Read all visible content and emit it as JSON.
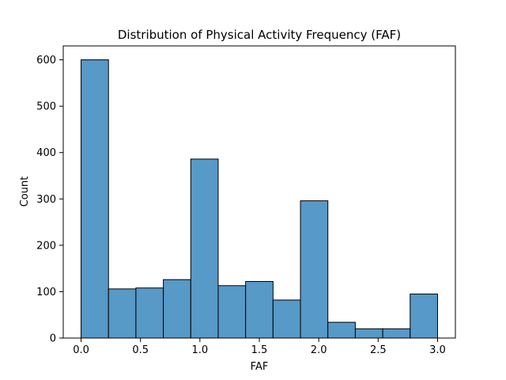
{
  "chart_data": {
    "type": "bar",
    "title": "Distribution of Physical Activity Frequency (FAF)",
    "xlabel": "FAF",
    "ylabel": "Count",
    "bin_edges": [
      0.0,
      0.2308,
      0.4615,
      0.6923,
      0.9231,
      1.1538,
      1.3846,
      1.6154,
      1.8462,
      2.0769,
      2.3077,
      2.5385,
      2.7692,
      3.0
    ],
    "values": [
      600,
      106,
      108,
      126,
      386,
      113,
      122,
      82,
      296,
      34,
      20,
      20,
      95
    ],
    "xlim": [
      -0.15,
      3.15
    ],
    "ylim": [
      0,
      630
    ],
    "xticks": [
      0.0,
      0.5,
      1.0,
      1.5,
      2.0,
      2.5,
      3.0
    ],
    "xtick_labels": [
      "0.0",
      "0.5",
      "1.0",
      "1.5",
      "2.0",
      "2.5",
      "3.0"
    ],
    "yticks": [
      0,
      100,
      200,
      300,
      400,
      500,
      600
    ],
    "ytick_labels": [
      "0",
      "100",
      "200",
      "300",
      "400",
      "500",
      "600"
    ],
    "bar_color": "#5799c7",
    "edge_color": "#000000",
    "grid": false
  }
}
